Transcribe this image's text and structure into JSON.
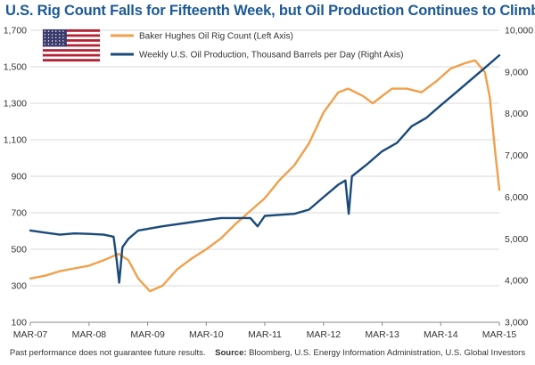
{
  "title": "U.S. Rig Count Falls for Fifteenth Week, but Oil Production Continues to Climb",
  "footer": {
    "disclaimer": "Past performance does not guarantee future results.",
    "source_label": "Source:",
    "source_text": "Bloomberg, U.S. Energy Information Administration, U.S. Global Investors"
  },
  "colors": {
    "title": "#1d5a96",
    "rig_count": "#f0a04b",
    "oil_production": "#1a4a7a",
    "grid": "#d9d9d9",
    "axis": "#888888"
  },
  "chart_data": {
    "type": "line",
    "title": "U.S. Rig Count Falls for Fifteenth Week, but Oil Production Continues to Climb",
    "x_ticks": [
      "MAR-07",
      "MAR-08",
      "MAR-09",
      "MAR-10",
      "MAR-11",
      "MAR-12",
      "MAR-13",
      "MAR-14",
      "MAR-15"
    ],
    "x_range": [
      "2007-03",
      "2015-03"
    ],
    "left_axis": {
      "ticks": [
        100,
        300,
        500,
        700,
        900,
        1100,
        1300,
        1500,
        1700
      ],
      "ylim": [
        100,
        1700
      ]
    },
    "right_axis": {
      "ticks": [
        "3,000",
        "4,000",
        "5,000",
        "6,000",
        "7,000",
        "8,000",
        "9,000",
        "10,000"
      ],
      "ylim": [
        3000,
        10000
      ]
    },
    "legend_icon": "us-flag-icon",
    "legend_position": "top-left",
    "grid": "horizontal",
    "series": [
      {
        "name": "Baker Hughes Oil Rig Count (Left Axis)",
        "axis": "left",
        "color": "#f0a04b",
        "points": [
          [
            "2007-03-01",
            340
          ],
          [
            "2007-06-01",
            355
          ],
          [
            "2007-09-01",
            380
          ],
          [
            "2007-12-01",
            395
          ],
          [
            "2008-03-01",
            410
          ],
          [
            "2008-06-01",
            440
          ],
          [
            "2008-09-01",
            475
          ],
          [
            "2008-11-01",
            440
          ],
          [
            "2009-01-01",
            340
          ],
          [
            "2009-03-15",
            270
          ],
          [
            "2009-06-01",
            300
          ],
          [
            "2009-09-01",
            390
          ],
          [
            "2009-12-01",
            450
          ],
          [
            "2010-03-01",
            500
          ],
          [
            "2010-06-01",
            560
          ],
          [
            "2010-09-01",
            640
          ],
          [
            "2010-12-01",
            710
          ],
          [
            "2011-03-01",
            780
          ],
          [
            "2011-06-01",
            880
          ],
          [
            "2011-09-01",
            960
          ],
          [
            "2011-12-01",
            1080
          ],
          [
            "2012-03-01",
            1250
          ],
          [
            "2012-06-01",
            1360
          ],
          [
            "2012-08-01",
            1380
          ],
          [
            "2012-11-01",
            1340
          ],
          [
            "2013-01-01",
            1300
          ],
          [
            "2013-05-01",
            1380
          ],
          [
            "2013-08-01",
            1380
          ],
          [
            "2013-11-01",
            1360
          ],
          [
            "2014-02-01",
            1420
          ],
          [
            "2014-05-01",
            1490
          ],
          [
            "2014-08-01",
            1520
          ],
          [
            "2014-10-01",
            1535
          ],
          [
            "2014-12-01",
            1470
          ],
          [
            "2015-01-01",
            1330
          ],
          [
            "2015-02-01",
            1050
          ],
          [
            "2015-03-01",
            825
          ]
        ]
      },
      {
        "name": "Weekly U.S. Oil Production, Thousand Barrels per Day (Right Axis)",
        "axis": "right",
        "color": "#1a4a7a",
        "points": [
          [
            "2007-03-01",
            5200
          ],
          [
            "2007-06-01",
            5150
          ],
          [
            "2007-09-01",
            5100
          ],
          [
            "2007-12-01",
            5130
          ],
          [
            "2008-03-01",
            5120
          ],
          [
            "2008-06-01",
            5100
          ],
          [
            "2008-08-01",
            5050
          ],
          [
            "2008-08-20",
            4500
          ],
          [
            "2008-09-05",
            3950
          ],
          [
            "2008-09-25",
            4800
          ],
          [
            "2008-11-01",
            5000
          ],
          [
            "2009-01-01",
            5200
          ],
          [
            "2009-06-01",
            5300
          ],
          [
            "2009-12-01",
            5400
          ],
          [
            "2010-03-01",
            5450
          ],
          [
            "2010-06-01",
            5500
          ],
          [
            "2010-12-01",
            5500
          ],
          [
            "2011-01-15",
            5300
          ],
          [
            "2011-03-01",
            5550
          ],
          [
            "2011-09-01",
            5600
          ],
          [
            "2011-12-01",
            5700
          ],
          [
            "2012-03-01",
            6000
          ],
          [
            "2012-06-01",
            6300
          ],
          [
            "2012-07-15",
            6400
          ],
          [
            "2012-08-05",
            5600
          ],
          [
            "2012-08-25",
            6500
          ],
          [
            "2012-12-01",
            6800
          ],
          [
            "2013-03-01",
            7100
          ],
          [
            "2013-06-01",
            7300
          ],
          [
            "2013-09-01",
            7700
          ],
          [
            "2013-12-01",
            7900
          ],
          [
            "2014-03-01",
            8200
          ],
          [
            "2014-06-01",
            8500
          ],
          [
            "2014-09-01",
            8800
          ],
          [
            "2014-12-01",
            9100
          ],
          [
            "2015-03-01",
            9400
          ]
        ]
      }
    ]
  }
}
